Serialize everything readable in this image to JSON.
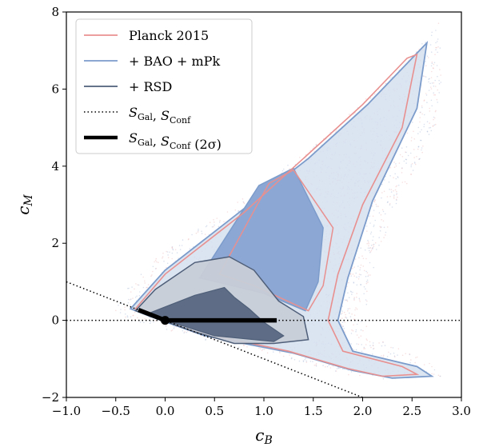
{
  "chart_data": {
    "type": "scatter",
    "title": "",
    "xlabel": "c_B",
    "ylabel": "c_M",
    "xlim": [
      -1.0,
      3.0
    ],
    "ylim": [
      -2,
      8
    ],
    "x_ticks": [
      -1.0,
      -0.5,
      0.0,
      0.5,
      1.0,
      1.5,
      2.0,
      2.5,
      3.0
    ],
    "x_tick_labels": [
      "−1.0",
      "−0.5",
      "0.0",
      "0.5",
      "1.0",
      "1.5",
      "2.0",
      "2.5",
      "3.0"
    ],
    "y_ticks": [
      -2,
      0,
      2,
      4,
      6,
      8
    ],
    "y_tick_labels": [
      "−2",
      "0",
      "2",
      "4",
      "6",
      "8"
    ],
    "grid": false,
    "legend_position": "top-left",
    "legend": [
      {
        "label": "Planck 2015",
        "style": "line",
        "color": "#e8908f"
      },
      {
        "label": "+ BAO + mPk",
        "style": "line",
        "color": "#7c9ccb"
      },
      {
        "label": "+ RSD",
        "style": "line",
        "color": "#4f5f79"
      },
      {
        "label": "S_Gal, S_Conf",
        "style": "dotted",
        "color": "#000000"
      },
      {
        "label": "S_Gal, S_Conf (2σ)",
        "style": "thick",
        "color": "#000000"
      }
    ],
    "series": [
      {
        "name": "Planck 2015",
        "kind": "contour",
        "color": "#e8908f",
        "level_2sigma": [
          [
            -0.3,
            0.3
          ],
          [
            0.0,
            1.2
          ],
          [
            0.8,
            2.8
          ],
          [
            1.4,
            4.2
          ],
          [
            2.0,
            5.6
          ],
          [
            2.45,
            6.8
          ],
          [
            2.55,
            6.9
          ],
          [
            2.4,
            5.0
          ],
          [
            2.0,
            3.0
          ],
          [
            1.75,
            1.2
          ],
          [
            1.65,
            0.0
          ],
          [
            1.8,
            -0.8
          ],
          [
            2.4,
            -1.2
          ],
          [
            2.55,
            -1.4
          ],
          [
            2.2,
            -1.45
          ],
          [
            1.85,
            -1.25
          ],
          [
            1.25,
            -0.8
          ],
          [
            0.4,
            -0.35
          ],
          [
            -0.1,
            0.1
          ],
          [
            -0.3,
            0.3
          ]
        ],
        "level_1sigma": [
          [
            0.55,
            1.2
          ],
          [
            1.05,
            3.55
          ],
          [
            1.3,
            3.9
          ],
          [
            1.7,
            2.4
          ],
          [
            1.6,
            0.9
          ],
          [
            1.45,
            0.25
          ],
          [
            0.9,
            0.9
          ],
          [
            0.55,
            1.2
          ]
        ]
      },
      {
        "name": "+ BAO + mPk",
        "kind": "contour",
        "color": "#7c9ccb",
        "fill_2sigma": "#d5dfee",
        "fill_1sigma": "#8da7d4",
        "level_2sigma": [
          [
            -0.35,
            0.3
          ],
          [
            0.0,
            1.3
          ],
          [
            0.8,
            2.9
          ],
          [
            1.45,
            4.2
          ],
          [
            2.05,
            5.6
          ],
          [
            2.5,
            6.8
          ],
          [
            2.65,
            7.2
          ],
          [
            2.55,
            5.5
          ],
          [
            2.1,
            3.1
          ],
          [
            1.85,
            1.1
          ],
          [
            1.75,
            0.0
          ],
          [
            1.9,
            -0.8
          ],
          [
            2.55,
            -1.2
          ],
          [
            2.7,
            -1.45
          ],
          [
            2.3,
            -1.5
          ],
          [
            1.9,
            -1.3
          ],
          [
            1.3,
            -0.85
          ],
          [
            0.4,
            -0.4
          ],
          [
            -0.15,
            0.1
          ],
          [
            -0.35,
            0.3
          ]
        ],
        "level_1sigma": [
          [
            0.35,
            1.1
          ],
          [
            0.95,
            3.5
          ],
          [
            1.3,
            3.95
          ],
          [
            1.6,
            2.4
          ],
          [
            1.55,
            1.0
          ],
          [
            1.42,
            0.25
          ],
          [
            1.0,
            0.7
          ],
          [
            0.6,
            0.95
          ],
          [
            0.35,
            1.1
          ]
        ]
      },
      {
        "name": "+ RSD",
        "kind": "contour",
        "color": "#4f5f79",
        "fill_2sigma": "#c8ced7",
        "fill_1sigma": "#5e6d85",
        "level_2sigma": [
          [
            -0.3,
            0.25
          ],
          [
            -0.1,
            0.8
          ],
          [
            0.3,
            1.5
          ],
          [
            0.65,
            1.65
          ],
          [
            0.9,
            1.3
          ],
          [
            1.15,
            0.5
          ],
          [
            1.4,
            0.1
          ],
          [
            1.45,
            -0.5
          ],
          [
            1.1,
            -0.6
          ],
          [
            0.7,
            -0.6
          ],
          [
            0.3,
            -0.3
          ],
          [
            -0.3,
            0.25
          ]
        ],
        "level_1sigma": [
          [
            -0.15,
            0.2
          ],
          [
            0.3,
            0.65
          ],
          [
            0.6,
            0.85
          ],
          [
            0.7,
            0.6
          ],
          [
            0.85,
            0.3
          ],
          [
            1.0,
            -0.05
          ],
          [
            1.2,
            -0.4
          ],
          [
            1.1,
            -0.55
          ],
          [
            0.5,
            -0.4
          ],
          [
            0.0,
            0.0
          ],
          [
            -0.15,
            0.2
          ]
        ]
      },
      {
        "name": "S_Gal, S_Conf",
        "kind": "line",
        "style": "dotted",
        "segments": [
          {
            "x": [
              -1.0,
              3.0
            ],
            "y": [
              0,
              0
            ]
          },
          {
            "x": [
              -1.0,
              2.0
            ],
            "y": [
              1.0,
              -2.0
            ]
          }
        ]
      },
      {
        "name": "S_Gal, S_Conf (2σ)",
        "kind": "line",
        "style": "thick",
        "segments": [
          {
            "x": [
              -0.27,
              0.0
            ],
            "y": [
              0.27,
              0.0
            ]
          },
          {
            "x": [
              0.0,
              1.13
            ],
            "y": [
              0.0,
              0.0
            ]
          }
        ],
        "marker": {
          "x": 0.0,
          "y": 0.0
        }
      }
    ]
  }
}
